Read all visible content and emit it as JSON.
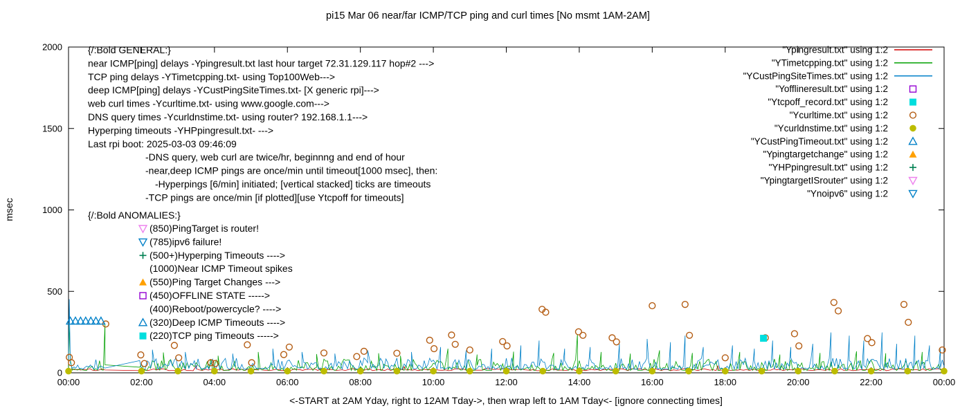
{
  "chart_data": {
    "type": "line+scatter",
    "title": "pi15 Mar 06  near/far ICMP/TCP ping and curl times [No msmt 1AM-2AM]",
    "ylabel": "msec",
    "xlabel": "<-START at 2AM Yday, right to 12AM Tday->, then wrap left to 1AM Tday<- [ignore connecting times]",
    "ylim": [
      0,
      2000
    ],
    "y_ticks": [
      0,
      500,
      1000,
      1500,
      2000
    ],
    "x_range_hours": [
      0,
      24
    ],
    "x_tick_labels": [
      "00:00",
      "02:00",
      "04:00",
      "06:00",
      "08:00",
      "10:00",
      "12:00",
      "14:00",
      "16:00",
      "18:00",
      "20:00",
      "22:00",
      "00:00"
    ],
    "no_measurement_gap_hours": [
      1.05,
      1.95
    ],
    "legend_position": "top-right",
    "legend": [
      {
        "label": "\"Ypingresult.txt\" using 1:2",
        "sample": "line",
        "color": "#d40000"
      },
      {
        "label": "\"YTimetcpping.txt\" using 1:2",
        "sample": "line",
        "color": "#00a000"
      },
      {
        "label": "\"YCustPingSiteTimes.txt\" using 1:2",
        "sample": "line",
        "color": "#0080c8"
      },
      {
        "label": "\"Yofflineresult.txt\" using 1:2",
        "sample": "square-open",
        "color": "#9400d3"
      },
      {
        "label": "\"Ytcpoff_record.txt\" using 1:2",
        "sample": "square-filled",
        "color": "#00dede"
      },
      {
        "label": "\"Ycurltime.txt\" using 1:2",
        "sample": "circle-open",
        "color": "#b45c12"
      },
      {
        "label": "\"Ycurldnstime.txt\" using 1:2",
        "sample": "circle-filled",
        "color": "#bcbc00"
      },
      {
        "label": "\"YCustPingTimeout.txt\" using 1:2",
        "sample": "triangle-open",
        "color": "#0080c8"
      },
      {
        "label": "\"Ypingtargetchange\" using 1:2",
        "sample": "triangle-filled",
        "color": "#ffa000"
      },
      {
        "label": "\"YHPpingresult.txt\" using 1:2",
        "sample": "plus",
        "color": "#008052"
      },
      {
        "label": "\"YpingtargetISrouter\" using 1:2",
        "sample": "triangle-down-open",
        "color": "#ee82ee"
      },
      {
        "label": "\"Ynoipv6\" using 1:2",
        "sample": "triangle-down-open",
        "color": "#0080c8"
      }
    ],
    "line_series": [
      {
        "name": "Ypingresult.txt",
        "color": "#d40000",
        "base": [
          13,
          26
        ],
        "skew": 1.2,
        "points_per_hour": 12,
        "seed": 101,
        "spikes": [
          [
            3.5,
            42
          ],
          [
            9.2,
            38
          ],
          [
            17.8,
            42
          ]
        ]
      },
      {
        "name": "YTimetcpping.txt",
        "color": "#00a000",
        "base": [
          15,
          85
        ],
        "skew": 2.8,
        "points_per_hour": 20,
        "seed": 202,
        "spikes": [
          [
            0.01,
            305
          ],
          [
            1.0,
            300
          ],
          [
            2.6,
            125
          ],
          [
            4.1,
            105
          ],
          [
            5.2,
            128
          ],
          [
            6.8,
            115
          ],
          [
            8.5,
            120
          ],
          [
            9.1,
            105
          ],
          [
            10.4,
            148
          ],
          [
            11.2,
            112
          ],
          [
            12.2,
            130
          ],
          [
            13.3,
            122
          ],
          [
            13.95,
            238
          ],
          [
            14.6,
            128
          ],
          [
            15.4,
            118
          ],
          [
            16.2,
            138
          ],
          [
            17.1,
            122
          ],
          [
            18.4,
            128
          ],
          [
            19.5,
            112
          ],
          [
            20.6,
            122
          ],
          [
            21.6,
            132
          ],
          [
            22.4,
            120
          ],
          [
            23.4,
            128
          ]
        ]
      },
      {
        "name": "YCustPingSiteTimes.txt",
        "color": "#0080c8",
        "base": [
          22,
          92
        ],
        "skew": 2.4,
        "points_per_hour": 20,
        "seed": 303,
        "spikes": [
          [
            0.02,
            452
          ],
          [
            2.3,
            142
          ],
          [
            3.2,
            128
          ],
          [
            4.5,
            118
          ],
          [
            5.6,
            148
          ],
          [
            6.4,
            128
          ],
          [
            7.3,
            118
          ],
          [
            8.2,
            138
          ],
          [
            9.4,
            128
          ],
          [
            10.2,
            158
          ],
          [
            10.9,
            138
          ],
          [
            11.6,
            148
          ],
          [
            12.4,
            168
          ],
          [
            12.9,
            198
          ],
          [
            13.6,
            148
          ],
          [
            14.3,
            158
          ],
          [
            15.1,
            178
          ],
          [
            15.86,
            208
          ],
          [
            16.5,
            188
          ],
          [
            16.9,
            228
          ],
          [
            17.4,
            158
          ],
          [
            18.2,
            168
          ],
          [
            18.8,
            148
          ],
          [
            19.3,
            198
          ],
          [
            19.8,
            158
          ],
          [
            20.4,
            178
          ],
          [
            20.9,
            248
          ],
          [
            21.4,
            228
          ],
          [
            21.8,
            198
          ],
          [
            22.3,
            248
          ],
          [
            22.7,
            178
          ],
          [
            23.2,
            228
          ],
          [
            23.6,
            168
          ],
          [
            23.9,
            148
          ]
        ]
      }
    ],
    "scatter_series": [
      {
        "name": "Ycurltime.txt",
        "marker": "circle-open",
        "color": "#b45c12",
        "points": [
          [
            0.02,
            95
          ],
          [
            0.08,
            62
          ],
          [
            1.02,
            300
          ],
          [
            1.98,
            110
          ],
          [
            2.08,
            57
          ],
          [
            2.9,
            168
          ],
          [
            3.02,
            92
          ],
          [
            3.9,
            62
          ],
          [
            4.02,
            57
          ],
          [
            4.9,
            172
          ],
          [
            5.02,
            62
          ],
          [
            5.9,
            112
          ],
          [
            6.05,
            158
          ],
          [
            7.0,
            122
          ],
          [
            7.9,
            100
          ],
          [
            8.1,
            132
          ],
          [
            9.0,
            120
          ],
          [
            9.9,
            200
          ],
          [
            10.02,
            148
          ],
          [
            10.5,
            232
          ],
          [
            10.6,
            175
          ],
          [
            11.0,
            140
          ],
          [
            11.9,
            192
          ],
          [
            12.02,
            165
          ],
          [
            12.98,
            390
          ],
          [
            13.08,
            372
          ],
          [
            13.98,
            252
          ],
          [
            14.1,
            230
          ],
          [
            14.9,
            215
          ],
          [
            15.02,
            190
          ],
          [
            16.0,
            412
          ],
          [
            16.9,
            420
          ],
          [
            17.02,
            230
          ],
          [
            18.0,
            92
          ],
          [
            19.1,
            215
          ],
          [
            19.9,
            240
          ],
          [
            20.02,
            165
          ],
          [
            20.98,
            432
          ],
          [
            21.1,
            380
          ],
          [
            21.9,
            210
          ],
          [
            22.02,
            185
          ],
          [
            22.9,
            420
          ],
          [
            23.02,
            310
          ],
          [
            23.95,
            140
          ]
        ]
      },
      {
        "name": "Ycurldnstime.txt",
        "marker": "circle-filled",
        "color": "#bcbc00",
        "points": [
          [
            0,
            10
          ],
          [
            2,
            10
          ],
          [
            3,
            10
          ],
          [
            4,
            10
          ],
          [
            5,
            10
          ],
          [
            6,
            10
          ],
          [
            7,
            10
          ],
          [
            8,
            10
          ],
          [
            9,
            10
          ],
          [
            10,
            10
          ],
          [
            11,
            10
          ],
          [
            12,
            10
          ],
          [
            13,
            10
          ],
          [
            14,
            10
          ],
          [
            15,
            10
          ],
          [
            16,
            10
          ],
          [
            17,
            10
          ],
          [
            18,
            10
          ],
          [
            19,
            10
          ],
          [
            20,
            10
          ],
          [
            21,
            10
          ],
          [
            22,
            10
          ],
          [
            23,
            10
          ],
          [
            24,
            10
          ]
        ]
      },
      {
        "name": "YCustPingTimeout.txt",
        "marker": "triangle-open",
        "color": "#0080c8",
        "points": [
          [
            0.05,
            318
          ],
          [
            0.19,
            318
          ],
          [
            0.33,
            318
          ],
          [
            0.47,
            318
          ],
          [
            0.61,
            318
          ],
          [
            0.75,
            318
          ],
          [
            0.89,
            318
          ]
        ]
      },
      {
        "name": "Ytcpoff_record.txt",
        "marker": "square-filled",
        "color": "#00dede",
        "points": [
          [
            19.05,
            212
          ]
        ]
      },
      {
        "name": "Yofflineresult.txt",
        "marker": "square-open",
        "color": "#9400d3",
        "points": []
      },
      {
        "name": "Ypingtargetchange",
        "marker": "triangle-filled",
        "color": "#ffa000",
        "points": []
      },
      {
        "name": "YHPpingresult.txt",
        "marker": "plus",
        "color": "#008052",
        "points": []
      },
      {
        "name": "YpingtargetISrouter",
        "marker": "triangle-down-open",
        "color": "#ee82ee",
        "points": []
      },
      {
        "name": "Ynoipv6",
        "marker": "triangle-down-open",
        "color": "#0080c8",
        "points": []
      }
    ]
  },
  "annotations": {
    "general": [
      {
        "text": "{/:Bold GENERAL:}",
        "indent": 0
      },
      {
        "text": "near ICMP[ping] delays -Ypingresult.txt last hour target 72.31.129.117 hop#2 --->",
        "indent": 0
      },
      {
        "text": "TCP ping delays -YTimetcpping.txt- using Top100Web--->",
        "indent": 0
      },
      {
        "text": "deep ICMP[ping] delays -YCustPingSiteTimes.txt- [X generic rpi]--->",
        "indent": 0
      },
      {
        "text": "web curl times -Ycurltime.txt- using www.google.com--->",
        "indent": 0
      },
      {
        "text": "DNS query times -Ycurldnstime.txt- using router? 192.168.1.1--->",
        "indent": 0
      },
      {
        "text": "Hyperping timeouts -YHPpingresult.txt- --->",
        "indent": 0
      },
      {
        "text": "Last rpi boot: 2025-03-03 09:46:09",
        "indent": 0
      },
      {
        "text": "-DNS query, web curl are twice/hr, beginnng and end of hour",
        "indent": 1
      },
      {
        "text": "-near,deep ICMP pings are once/min until timeout[1000 msec], then:",
        "indent": 1
      },
      {
        "text": "-Hyperpings [6/min] initiated; [vertical stacked] ticks are timeouts",
        "indent": 2
      },
      {
        "text": "-TCP pings are once/min [if plotted][use Ytcpoff for timeouts]",
        "indent": 1
      }
    ],
    "anomalies_header": "{/:Bold ANOMALIES:}",
    "anomalies": [
      {
        "marker": "triangle-down-open",
        "color": "#ee82ee",
        "text": "(850)PingTarget is router!"
      },
      {
        "marker": "triangle-down-open",
        "color": "#0080c8",
        "text": "(785)ipv6 failure!"
      },
      {
        "marker": "plus",
        "color": "#008052",
        "text": "(500+)Hyperping Timeouts ---->"
      },
      {
        "marker": "",
        "color": "",
        "text": "(1000)Near ICMP Timeout spikes"
      },
      {
        "marker": "triangle-filled",
        "color": "#ffa000",
        "text": "(550)Ping Target Changes --->"
      },
      {
        "marker": "square-open",
        "color": "#9400d3",
        "text": "(450)OFFLINE STATE ----->"
      },
      {
        "marker": "",
        "color": "",
        "text": "(400)Reboot/powercycle? ---->"
      },
      {
        "marker": "triangle-open",
        "color": "#0080c8",
        "text": "(320)Deep ICMP Timeouts ---->"
      },
      {
        "marker": "square-filled",
        "color": "#00dede",
        "text": "(220)TCP ping Timeouts ----->"
      }
    ]
  }
}
